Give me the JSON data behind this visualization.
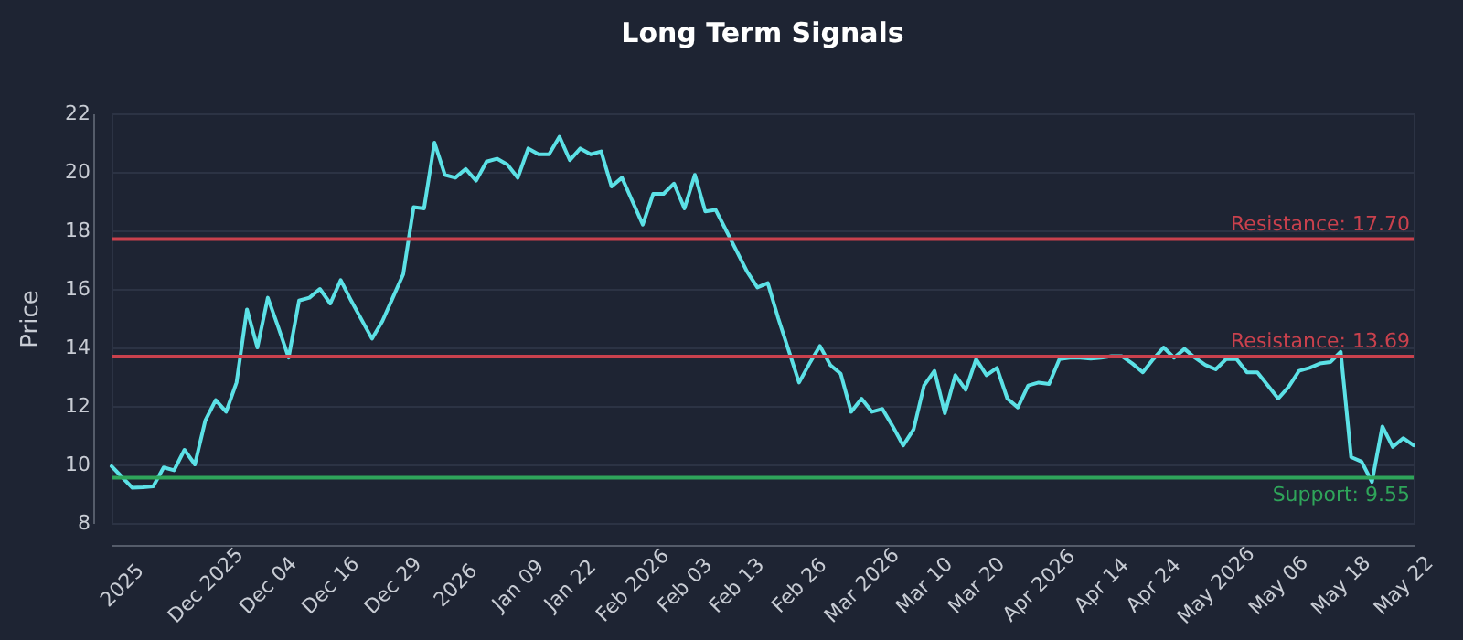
{
  "chart_data": {
    "type": "line",
    "title": "Long Term Signals",
    "ylabel": "Price",
    "categories": [
      null,
      "2025",
      null,
      null,
      null,
      null,
      null,
      null,
      null,
      "Dec 2025",
      null,
      null,
      null,
      null,
      null,
      "Dec 04",
      null,
      null,
      null,
      null,
      null,
      "Dec 16",
      null,
      null,
      null,
      null,
      null,
      "Dec 29",
      null,
      null,
      null,
      null,
      null,
      "2026",
      null,
      null,
      null,
      null,
      null,
      "Jan 09",
      null,
      null,
      null,
      null,
      "Jan 22",
      null,
      null,
      null,
      null,
      null,
      "Feb 2026",
      null,
      null,
      null,
      null,
      "Feb 03",
      null,
      null,
      null,
      null,
      "Feb 13",
      null,
      null,
      null,
      null,
      null,
      "Feb 26",
      null,
      null,
      null,
      null,
      null,
      "Mar 2026",
      null,
      null,
      null,
      null,
      null,
      "Mar 10",
      null,
      null,
      null,
      null,
      "Mar 20",
      null,
      null,
      null,
      null,
      null,
      "Apr 2026",
      null,
      null,
      null,
      null,
      null,
      "Apr 14",
      null,
      null,
      null,
      null,
      "Apr 24",
      null,
      null,
      null,
      null,
      null,
      "May 2026",
      null,
      null,
      null,
      null,
      null,
      "May 06",
      null,
      null,
      null,
      null,
      null,
      "May 18",
      null,
      null,
      null,
      null,
      null,
      "May 22",
      null
    ],
    "series": [
      {
        "color": "#5ce1e6",
        "values": [
          9.94,
          9.57,
          9.2,
          9.22,
          9.25,
          9.9,
          9.8,
          10.5,
          10.0,
          11.5,
          12.2,
          11.8,
          12.8,
          15.3,
          14.0,
          15.7,
          14.7,
          13.65,
          15.6,
          15.7,
          16.0,
          15.5,
          16.3,
          15.6,
          14.95,
          14.3,
          14.9,
          15.7,
          16.5,
          18.8,
          18.75,
          21.0,
          19.9,
          19.8,
          20.1,
          19.7,
          20.35,
          20.45,
          20.25,
          19.8,
          20.8,
          20.6,
          20.6,
          21.2,
          20.4,
          20.8,
          20.6,
          20.7,
          19.5,
          19.8,
          19.0,
          18.2,
          19.25,
          19.25,
          19.6,
          18.75,
          19.9,
          18.65,
          18.7,
          18.0,
          17.3,
          16.6,
          16.05,
          16.2,
          15.0,
          13.9,
          12.8,
          13.45,
          14.05,
          13.4,
          13.1,
          11.8,
          12.25,
          11.8,
          11.9,
          11.3,
          10.65,
          11.2,
          12.7,
          13.2,
          11.75,
          13.05,
          12.55,
          13.6,
          13.05,
          13.3,
          12.25,
          11.95,
          12.7,
          12.8,
          12.75,
          13.6,
          13.65,
          13.65,
          13.62,
          13.65,
          13.7,
          13.7,
          13.45,
          13.15,
          13.6,
          14.0,
          13.65,
          13.95,
          13.65,
          13.4,
          13.25,
          13.6,
          13.6,
          13.15,
          13.15,
          12.7,
          12.25,
          12.65,
          13.2,
          13.3,
          13.45,
          13.5,
          13.85,
          10.25,
          10.1,
          9.4,
          11.3,
          10.6,
          10.9,
          10.65
        ]
      }
    ],
    "ylim": [
      8,
      22
    ],
    "yticks": [
      8,
      10,
      12,
      14,
      16,
      18,
      20,
      22
    ],
    "grid": "y",
    "marker": "none",
    "ref_lines": [
      {
        "axis": "y",
        "value": 17.7,
        "label": "Resistance: 17.70",
        "color": "#c9414d"
      },
      {
        "axis": "y",
        "value": 13.69,
        "label": "Resistance: 13.69",
        "color": "#c9414d"
      },
      {
        "axis": "y",
        "value": 9.55,
        "label": "Support: 9.55",
        "color": "#2fa55a"
      }
    ]
  }
}
